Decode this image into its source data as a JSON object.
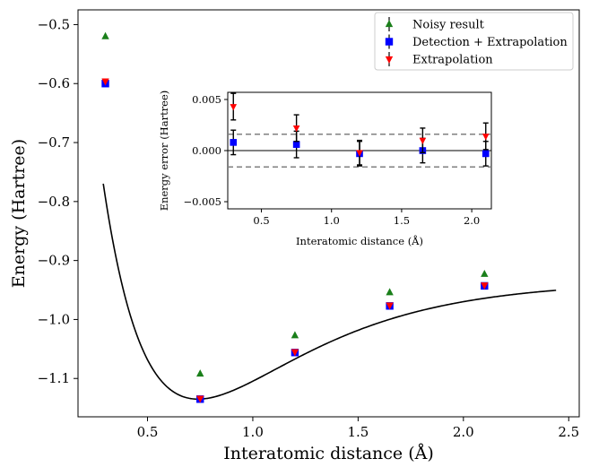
{
  "chart_data": [
    {
      "type": "scatter",
      "role": "main",
      "xlabel": "Interatomic distance (Å)",
      "ylabel": "Energy (Hartree)",
      "xlim": [
        0.17,
        2.55
      ],
      "ylim": [
        -1.165,
        -0.475
      ],
      "xticks": [
        0.5,
        1.0,
        1.5,
        2.0,
        2.5
      ],
      "xtick_labels": [
        "0.5",
        "1.0",
        "1.5",
        "2.0",
        "2.5"
      ],
      "yticks": [
        -0.5,
        -0.6,
        -0.7,
        -0.8,
        -0.9,
        -1.0,
        -1.1
      ],
      "ytick_labels": [
        "−0.5",
        "−0.6",
        "−0.7",
        "−0.8",
        "−0.9",
        "−1.0",
        "−1.1"
      ],
      "grid": false,
      "legend_position": "top-right",
      "curve": {
        "type": "line",
        "color": "#000000",
        "morse_fit": {
          "de": 0.2,
          "a": 1.9,
          "re": 0.74,
          "e_inf": -0.935
        },
        "x_range": [
          0.29,
          2.44
        ]
      },
      "series": [
        {
          "name": "Noisy result",
          "marker": "triangle-up",
          "color": "#1a7f1a",
          "x": [
            0.3,
            0.75,
            1.2,
            1.65,
            2.1
          ],
          "y": [
            -0.52,
            -1.092,
            -1.027,
            -0.954,
            -0.923
          ]
        },
        {
          "name": "Detection + Extrapolation",
          "marker": "square",
          "color": "#0000ff",
          "x": [
            0.3,
            0.75,
            1.2,
            1.65,
            2.1
          ],
          "y": [
            -0.6,
            -1.135,
            -1.056,
            -0.977,
            -0.943
          ]
        },
        {
          "name": "Extrapolation",
          "marker": "triangle-down",
          "color": "#ff0000",
          "x": [
            0.3,
            0.75,
            1.2,
            1.65,
            2.1
          ],
          "y": [
            -0.596,
            -1.134,
            -1.055,
            -0.976,
            -0.942
          ]
        }
      ]
    },
    {
      "type": "scatter",
      "role": "inset",
      "xlabel": "Interatomic distance (Å)",
      "ylabel": "Energy error (Hartree)",
      "xlim": [
        0.26,
        2.14
      ],
      "ylim": [
        -0.0057,
        0.0057
      ],
      "xticks": [
        0.5,
        1.0,
        1.5,
        2.0
      ],
      "xtick_labels": [
        "0.5",
        "1.0",
        "1.5",
        "2.0"
      ],
      "yticks": [
        0.005,
        0.0,
        -0.005
      ],
      "ytick_labels": [
        "0.005",
        "0.000",
        "−0.005"
      ],
      "reference_lines": [
        {
          "y": 0.0,
          "style": "solid",
          "color": "#000000"
        },
        {
          "y": 0.0016,
          "style": "dashed",
          "color": "#808080"
        },
        {
          "y": -0.0016,
          "style": "dashed",
          "color": "#808080"
        }
      ],
      "series": [
        {
          "name": "Detection + Extrapolation",
          "marker": "square",
          "color": "#0000ff",
          "x": [
            0.3,
            0.75,
            1.2,
            1.65,
            2.1
          ],
          "y": [
            0.0008,
            0.0006,
            -0.0003,
            0.0,
            -0.0003
          ],
          "yerr": [
            0.0012,
            0.0013,
            0.0012,
            0.0012,
            0.0012
          ]
        },
        {
          "name": "Extrapolation",
          "marker": "triangle-down",
          "color": "#ff0000",
          "x": [
            0.3,
            0.75,
            1.2,
            1.65,
            2.1
          ],
          "y": [
            0.0043,
            0.0022,
            -0.0002,
            0.001,
            0.0014
          ],
          "yerr": [
            0.0013,
            0.0013,
            0.0012,
            0.0012,
            0.0013
          ]
        }
      ]
    }
  ]
}
